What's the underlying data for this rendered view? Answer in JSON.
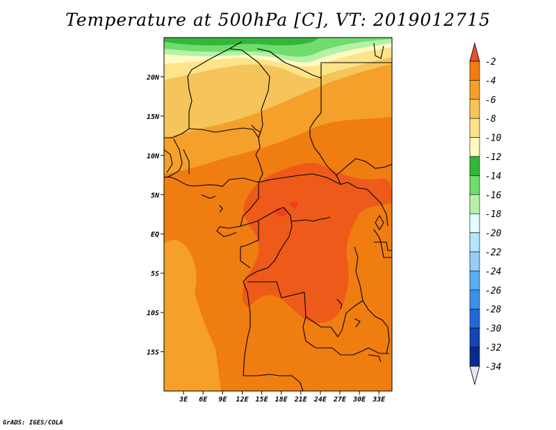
{
  "title": "Temperature at 500hPa [C], VT: 2019012715",
  "credit": "GrADS: IGES/COLA",
  "map": {
    "lon_range": [
      0,
      35
    ],
    "lat_range": [
      -20,
      25
    ],
    "lat_labels": [
      "20N",
      "15N",
      "10N",
      "5N",
      "EQ",
      "5S",
      "10S",
      "15S"
    ],
    "lat_values": [
      20,
      15,
      10,
      5,
      0,
      -5,
      -10,
      -15
    ],
    "lon_labels": [
      "3E",
      "6E",
      "9E",
      "12E",
      "15E",
      "18E",
      "21E",
      "24E",
      "27E",
      "30E",
      "33E"
    ],
    "lon_values": [
      3,
      6,
      9,
      12,
      15,
      18,
      21,
      24,
      27,
      30,
      33
    ]
  },
  "colorbar": {
    "labels": [
      "-2",
      "-4",
      "-6",
      "-8",
      "-10",
      "-12",
      "-14",
      "-16",
      "-18",
      "-20",
      "-22",
      "-24",
      "-26",
      "-28",
      "-30",
      "-32",
      "-34"
    ],
    "colors": [
      "#e8502a",
      "#f07d10",
      "#f4a02a",
      "#f5c45a",
      "#fde38a",
      "#fffbc0",
      "#34b53b",
      "#6fdc6d",
      "#b3f2a8",
      "#e0ffff",
      "#b6e4fb",
      "#96ccf5",
      "#5aaef0",
      "#3d90e8",
      "#2667d6",
      "#1448b0",
      "#0a2b8c",
      "#0a1a6e"
    ],
    "top_arrow_color": "#e8502a",
    "bottom_arrow_color": "#e4e4f8"
  },
  "field_colors": {
    "c2": "#ee5a1a",
    "c4": "#f07d10",
    "c6": "#f4a02a",
    "c8": "#f5c45a",
    "c10": "#fde38a",
    "c12": "#fffbc0",
    "c14": "#34b53b",
    "c16": "#6fdc6d",
    "c18": "#b3f2a8",
    "c1": "#f2401c"
  }
}
